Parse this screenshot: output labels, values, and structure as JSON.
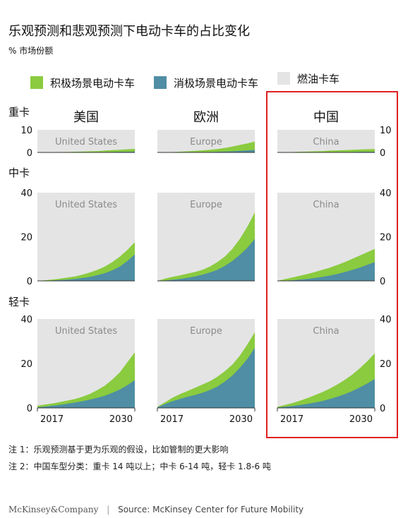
{
  "title": "乐观预测和悲观预测下电动卡车的占比变化",
  "subtitle": "% 市场份额",
  "legend": [
    {
      "label": "积极场景电动卡车",
      "color": "#8acb3f"
    },
    {
      "label": "消极场景电动卡车",
      "color": "#4f8ea4"
    },
    {
      "label": "燃油卡车",
      "color": "#e4e4e4"
    }
  ],
  "region_headers": [
    "美国",
    "欧洲",
    "中国"
  ],
  "highlight_color": "#e02020",
  "notes": [
    "注 1：乐观预测基于更为乐观的假设，比如管制的更大影响",
    "注 2：中国车型分类：重卡 14 吨以上；中卡 6-14 吨，轻卡 1.8-6 吨"
  ],
  "footer": {
    "brand": "McKinsey&Company",
    "separator": "|",
    "source": "Source: McKinsey Center for Future Mobility"
  },
  "chart_data": {
    "type": "area",
    "x": [
      2017,
      2018,
      2019,
      2020,
      2021,
      2022,
      2023,
      2024,
      2025,
      2026,
      2027,
      2028,
      2029,
      2030
    ],
    "xticks": [
      "2017",
      "2030"
    ],
    "colors": {
      "positive": "#8acb3f",
      "negative": "#4f8ea4",
      "fuel": "#e4e4e4"
    },
    "rows": [
      {
        "label": "重卡",
        "ylim": [
          0,
          10
        ],
        "yticks": [
          "10",
          "0"
        ]
      },
      {
        "label": "中卡",
        "ylim": [
          0,
          40
        ],
        "yticks": [
          "40",
          "20",
          "0"
        ]
      },
      {
        "label": "轻卡",
        "ylim": [
          0,
          40
        ],
        "yticks": [
          "40",
          "20",
          "0"
        ]
      }
    ],
    "panels": [
      {
        "region": "United States",
        "row": "重卡",
        "positive": [
          0,
          0.1,
          0.1,
          0.2,
          0.2,
          0.3,
          0.4,
          0.5,
          0.6,
          0.8,
          1.0,
          1.2,
          1.4,
          1.6
        ],
        "negative": [
          0,
          0,
          0,
          0,
          0,
          0.1,
          0.1,
          0.1,
          0.1,
          0.2,
          0.2,
          0.3,
          0.3,
          0.4
        ]
      },
      {
        "region": "Europe",
        "row": "重卡",
        "positive": [
          0,
          0.1,
          0.2,
          0.3,
          0.5,
          0.7,
          0.9,
          1.2,
          1.5,
          2.0,
          2.6,
          3.3,
          4.0,
          4.8
        ],
        "negative": [
          0,
          0,
          0,
          0.1,
          0.1,
          0.1,
          0.2,
          0.2,
          0.3,
          0.4,
          0.5,
          0.7,
          0.9,
          1.1
        ]
      },
      {
        "region": "China",
        "row": "重卡",
        "positive": [
          0,
          0.1,
          0.2,
          0.3,
          0.4,
          0.5,
          0.6,
          0.8,
          0.9,
          1.0,
          1.2,
          1.3,
          1.4,
          1.5
        ],
        "negative": [
          0,
          0,
          0,
          0,
          0.1,
          0.1,
          0.1,
          0.1,
          0.2,
          0.2,
          0.2,
          0.3,
          0.3,
          0.3
        ]
      },
      {
        "region": "United States",
        "row": "中卡",
        "positive": [
          0,
          0.3,
          0.6,
          1,
          1.5,
          2,
          2.8,
          3.8,
          5,
          6.5,
          8.5,
          11,
          14,
          17.5
        ],
        "negative": [
          0,
          0.1,
          0.2,
          0.4,
          0.6,
          0.9,
          1.3,
          1.8,
          2.6,
          3.5,
          4.8,
          6.5,
          9,
          12
        ]
      },
      {
        "region": "Europe",
        "row": "中卡",
        "positive": [
          0,
          1,
          1.8,
          2.5,
          3.3,
          4,
          5,
          6.5,
          8.5,
          11,
          14.5,
          19,
          24.5,
          31
        ],
        "negative": [
          0,
          0.2,
          0.5,
          0.9,
          1.4,
          2,
          2.8,
          3.8,
          5,
          6.8,
          9,
          11.8,
          15,
          19
        ]
      },
      {
        "region": "China",
        "row": "中卡",
        "positive": [
          0,
          0.8,
          1.5,
          2.3,
          3.1,
          4,
          5,
          6,
          7.2,
          8.5,
          10,
          11.5,
          13,
          14.5
        ],
        "negative": [
          0,
          0.1,
          0.3,
          0.6,
          0.9,
          1.3,
          1.8,
          2.4,
          3.1,
          4,
          5,
          6,
          7.3,
          8.5
        ]
      },
      {
        "region": "United States",
        "row": "轻卡",
        "positive": [
          1,
          1.5,
          2,
          2.6,
          3.3,
          4,
          5,
          6.3,
          8,
          10,
          12.8,
          16,
          20.5,
          25
        ],
        "negative": [
          0.3,
          0.6,
          1,
          1.4,
          1.9,
          2.4,
          3,
          3.7,
          4.5,
          5.5,
          6.8,
          8.3,
          10.2,
          12.5
        ]
      },
      {
        "region": "Europe",
        "row": "轻卡",
        "positive": [
          0.5,
          2.5,
          4.5,
          6.2,
          7.6,
          9,
          10.5,
          12,
          14,
          16.5,
          19.5,
          23.5,
          28.5,
          34
        ],
        "negative": [
          0.3,
          1.7,
          3,
          4,
          5,
          5.8,
          6.8,
          8,
          9.6,
          11.8,
          14.5,
          18,
          22,
          27
        ]
      },
      {
        "region": "China",
        "row": "轻卡",
        "positive": [
          0.5,
          1.3,
          2.2,
          3.2,
          4.4,
          5.7,
          7.1,
          8.7,
          10.5,
          12.6,
          15,
          17.8,
          21,
          24.5
        ],
        "negative": [
          0.2,
          0.5,
          0.9,
          1.3,
          1.8,
          2.4,
          3.1,
          4,
          5,
          6.2,
          7.6,
          9.2,
          11,
          13
        ]
      }
    ]
  }
}
